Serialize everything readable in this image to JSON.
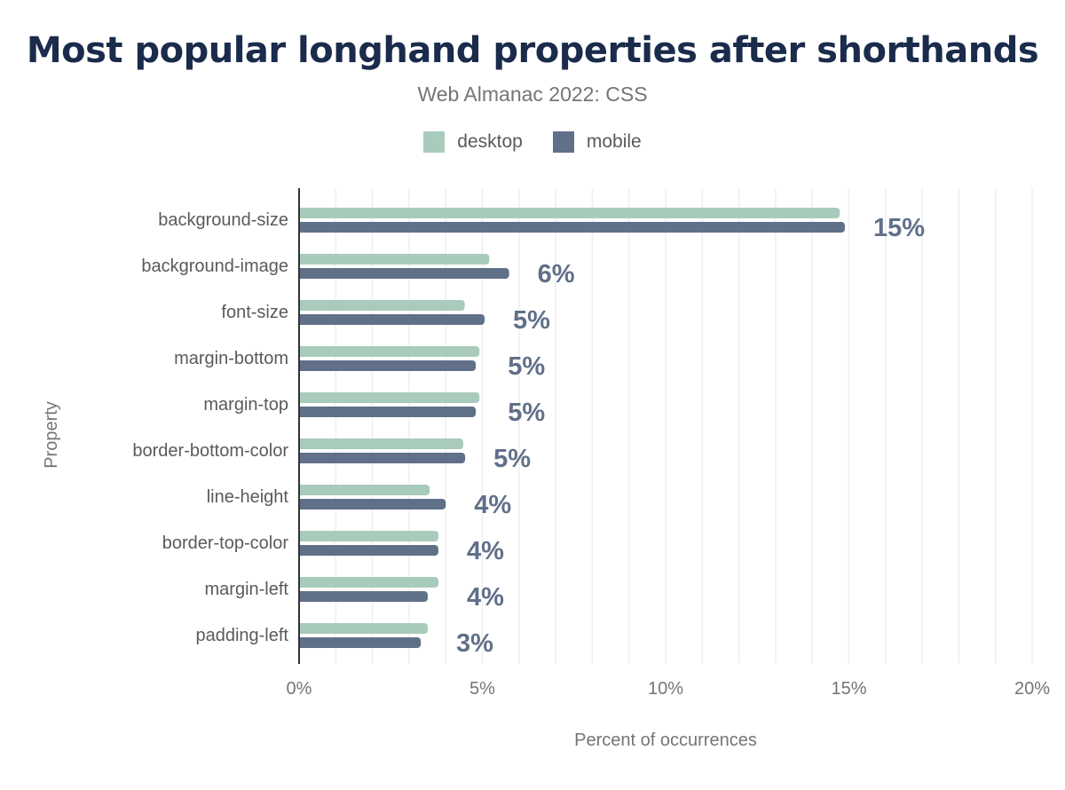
{
  "chart_data": {
    "type": "bar",
    "orientation": "horizontal",
    "title": "Most popular longhand properties after shorthands",
    "subtitle": "Web Almanac 2022: CSS",
    "xlabel": "Percent of occurrences",
    "ylabel": "Property",
    "xlim": [
      0,
      20
    ],
    "xticks": [
      "0%",
      "5%",
      "10%",
      "15%",
      "20%"
    ],
    "grid": true,
    "legend_position": "top",
    "categories": [
      "background-size",
      "background-image",
      "font-size",
      "margin-bottom",
      "margin-top",
      "border-bottom-color",
      "line-height",
      "border-top-color",
      "margin-left",
      "padding-left"
    ],
    "series": [
      {
        "name": "desktop",
        "color": "#a8cbbb",
        "values": [
          14.75,
          5.19,
          4.52,
          4.92,
          4.92,
          4.48,
          3.56,
          3.8,
          3.8,
          3.51
        ]
      },
      {
        "name": "mobile",
        "color": "#617089",
        "values": [
          14.89,
          5.73,
          5.06,
          4.82,
          4.82,
          4.53,
          4.0,
          3.8,
          3.51,
          3.32
        ]
      }
    ],
    "data_labels": [
      "15%",
      "6%",
      "5%",
      "5%",
      "5%",
      "5%",
      "4%",
      "4%",
      "4%",
      "3%"
    ]
  }
}
